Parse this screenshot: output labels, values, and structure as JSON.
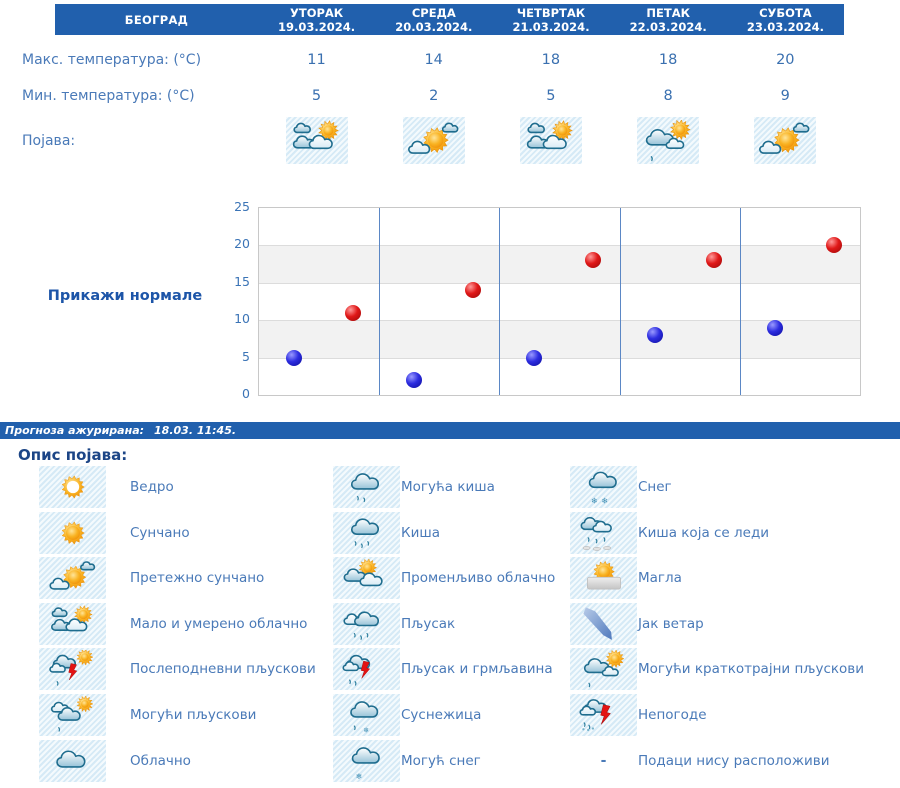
{
  "header": {
    "city": "БЕОГРАД",
    "days": [
      {
        "name": "УТОРАК",
        "date": "19.03.2024."
      },
      {
        "name": "СРЕДА",
        "date": "20.03.2024."
      },
      {
        "name": "ЧЕТВРТАК",
        "date": "21.03.2024."
      },
      {
        "name": "ПЕТАК",
        "date": "22.03.2024."
      },
      {
        "name": "СУБОТА",
        "date": "23.03.2024."
      }
    ]
  },
  "rows": {
    "max_label": "Макс. температура: (°C)",
    "min_label": "Мин. температура: (°C)",
    "phenomenon_label": "Појава:"
  },
  "forecast": {
    "max": [
      11,
      14,
      18,
      18,
      20
    ],
    "min": [
      5,
      2,
      5,
      8,
      9
    ],
    "icons": [
      "malo-i-umereno-oblacno",
      "pretezno-suncano",
      "malo-i-umereno-oblacno",
      "moguci-kratkotrajni-pljuskovi",
      "pretezno-suncano"
    ]
  },
  "chart": {
    "normals_link": "Прикажи нормале"
  },
  "chart_data": {
    "type": "scatter",
    "categories": [
      "УТОРАК 19.03.2024.",
      "СРЕДА 20.03.2024.",
      "ЧЕТВРТАК 21.03.2024.",
      "ПЕТАК 22.03.2024.",
      "СУБОТА 23.03.2024."
    ],
    "series": [
      {
        "name": "Макс. температура (°C)",
        "color": "#cc1111",
        "values": [
          11,
          14,
          18,
          18,
          20
        ]
      },
      {
        "name": "Мин. температура (°C)",
        "color": "#1a1acc",
        "values": [
          5,
          2,
          5,
          8,
          9
        ]
      }
    ],
    "ylim": [
      0,
      25
    ],
    "yticks": [
      0,
      5,
      10,
      15,
      20,
      25
    ],
    "grid": true,
    "legend_position": "none"
  },
  "status": {
    "label": "Прогноза ажурирана:",
    "value": "18.03. 11:45."
  },
  "legend": {
    "title": "Опис појава:",
    "dash_symbol": "-",
    "columns": [
      [
        {
          "icon": "vedro",
          "label": "Ведро"
        },
        {
          "icon": "suncano",
          "label": "Сунчано"
        },
        {
          "icon": "pretezno-suncano",
          "label": "Претежно сунчано"
        },
        {
          "icon": "malo-i-umereno-oblacno",
          "label": "Мало и умерено облачно"
        },
        {
          "icon": "poslepodnevni-pljuskovi",
          "label": "Послеподневни пљускови"
        },
        {
          "icon": "moguci-pljuskovi",
          "label": "Могући пљускови"
        },
        {
          "icon": "oblacno",
          "label": "Облачно"
        }
      ],
      [
        {
          "icon": "moguca-kisa",
          "label": "Могућа киша"
        },
        {
          "icon": "kisa",
          "label": "Киша"
        },
        {
          "icon": "promenljivo-oblacno",
          "label": "Променљиво облачно"
        },
        {
          "icon": "pljusak",
          "label": "Пљусак"
        },
        {
          "icon": "pljusak-i-grmljavina",
          "label": "Пљусак и грмљавина"
        },
        {
          "icon": "susnezica",
          "label": "Суснежица"
        },
        {
          "icon": "moguc-sneg",
          "label": "Могућ снег"
        }
      ],
      [
        {
          "icon": "sneg",
          "label": "Снег"
        },
        {
          "icon": "kisa-koja-se-ledi",
          "label": "Киша која се леди"
        },
        {
          "icon": "magla",
          "label": "Магла"
        },
        {
          "icon": "jak-vetar",
          "label": "Јак ветар"
        },
        {
          "icon": "moguci-kratkotrajni-pljuskovi",
          "label": "Могући краткотрајни пљускови"
        },
        {
          "icon": "nepogode",
          "label": "Непогоде"
        },
        {
          "icon": "dash",
          "label": "Подаци нису расположиви"
        }
      ]
    ]
  },
  "colors": {
    "header_bar": "#2160ad",
    "link_blue": "#1d55a8",
    "label_blue": "#4a7ab8",
    "max_dot": "#cc1111",
    "min_dot": "#1a1acc",
    "icon_cell_bg": "#e7f3fb"
  }
}
